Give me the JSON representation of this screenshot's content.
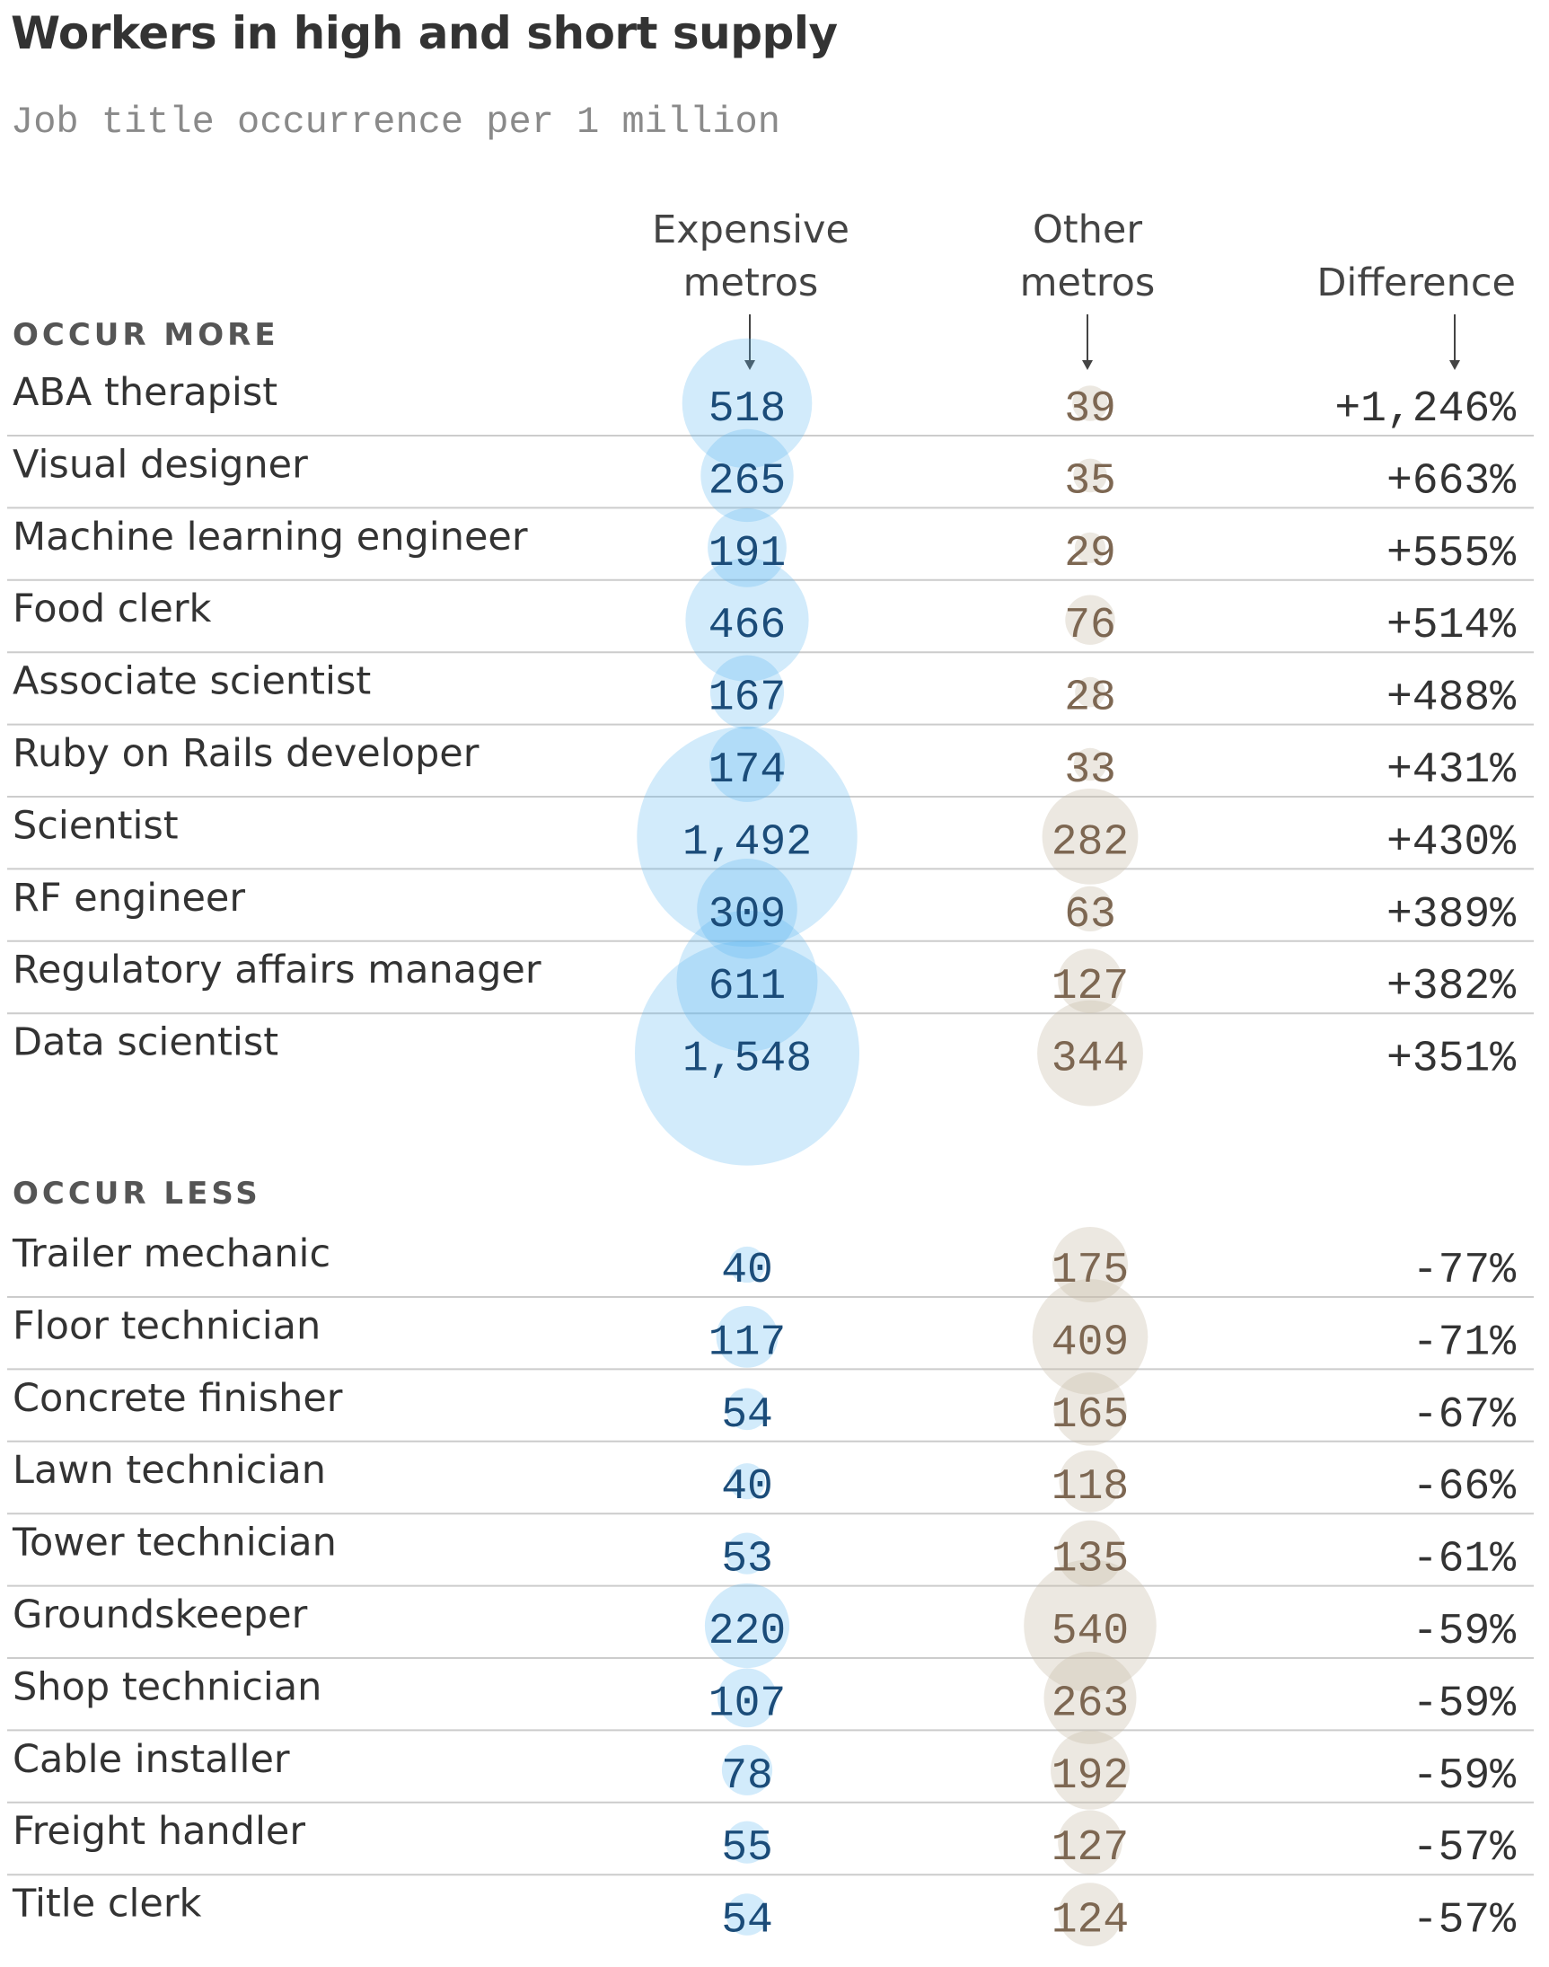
{
  "title": "Workers in high and short supply",
  "subtitle": "Job title occurrence per 1 million",
  "columns": {
    "expensive": [
      "Expensive",
      "metros"
    ],
    "other": [
      "Other",
      "metros"
    ],
    "difference": "Difference"
  },
  "colors": {
    "expensive_bubble": "#5ab4ef",
    "expensive_text": "#1b4c79",
    "other_bubble": "#c9bca9",
    "other_text": "#7d6752",
    "divider": "#cccccc"
  },
  "chart_data": {
    "type": "table",
    "encoding": "bubble area proportional to value",
    "sections": [
      {
        "label": "OCCUR MORE",
        "rows": [
          {
            "job": "ABA therapist",
            "expensive": 518,
            "expensive_label": "518",
            "other": 39,
            "other_label": "39",
            "difference": "+1,246%"
          },
          {
            "job": "Visual designer",
            "expensive": 265,
            "expensive_label": "265",
            "other": 35,
            "other_label": "35",
            "difference": "+663%"
          },
          {
            "job": "Machine learning engineer",
            "expensive": 191,
            "expensive_label": "191",
            "other": 29,
            "other_label": "29",
            "difference": "+555%"
          },
          {
            "job": "Food clerk",
            "expensive": 466,
            "expensive_label": "466",
            "other": 76,
            "other_label": "76",
            "difference": "+514%"
          },
          {
            "job": "Associate scientist",
            "expensive": 167,
            "expensive_label": "167",
            "other": 28,
            "other_label": "28",
            "difference": "+488%"
          },
          {
            "job": "Ruby on Rails developer",
            "expensive": 174,
            "expensive_label": "174",
            "other": 33,
            "other_label": "33",
            "difference": "+431%"
          },
          {
            "job": "Scientist",
            "expensive": 1492,
            "expensive_label": "1,492",
            "other": 282,
            "other_label": "282",
            "difference": "+430%"
          },
          {
            "job": "RF engineer",
            "expensive": 309,
            "expensive_label": "309",
            "other": 63,
            "other_label": "63",
            "difference": "+389%"
          },
          {
            "job": "Regulatory affairs manager",
            "expensive": 611,
            "expensive_label": "611",
            "other": 127,
            "other_label": "127",
            "difference": "+382%"
          },
          {
            "job": "Data scientist",
            "expensive": 1548,
            "expensive_label": "1,548",
            "other": 344,
            "other_label": "344",
            "difference": "+351%"
          }
        ]
      },
      {
        "label": "OCCUR LESS",
        "rows": [
          {
            "job": "Trailer mechanic",
            "expensive": 40,
            "expensive_label": "40",
            "other": 175,
            "other_label": "175",
            "difference": "-77%"
          },
          {
            "job": "Floor technician",
            "expensive": 117,
            "expensive_label": "117",
            "other": 409,
            "other_label": "409",
            "difference": "-71%"
          },
          {
            "job": "Concrete finisher",
            "expensive": 54,
            "expensive_label": "54",
            "other": 165,
            "other_label": "165",
            "difference": "-67%"
          },
          {
            "job": "Lawn technician",
            "expensive": 40,
            "expensive_label": "40",
            "other": 118,
            "other_label": "118",
            "difference": "-66%"
          },
          {
            "job": "Tower technician",
            "expensive": 53,
            "expensive_label": "53",
            "other": 135,
            "other_label": "135",
            "difference": "-61%"
          },
          {
            "job": "Groundskeeper",
            "expensive": 220,
            "expensive_label": "220",
            "other": 540,
            "other_label": "540",
            "difference": "-59%"
          },
          {
            "job": "Shop technician",
            "expensive": 107,
            "expensive_label": "107",
            "other": 263,
            "other_label": "263",
            "difference": "-59%"
          },
          {
            "job": "Cable installer",
            "expensive": 78,
            "expensive_label": "78",
            "other": 192,
            "other_label": "192",
            "difference": "-59%"
          },
          {
            "job": "Freight handler",
            "expensive": 55,
            "expensive_label": "55",
            "other": 127,
            "other_label": "127",
            "difference": "-57%"
          },
          {
            "job": "Title clerk",
            "expensive": 54,
            "expensive_label": "54",
            "other": 124,
            "other_label": "124",
            "difference": "-57%"
          }
        ]
      }
    ]
  }
}
